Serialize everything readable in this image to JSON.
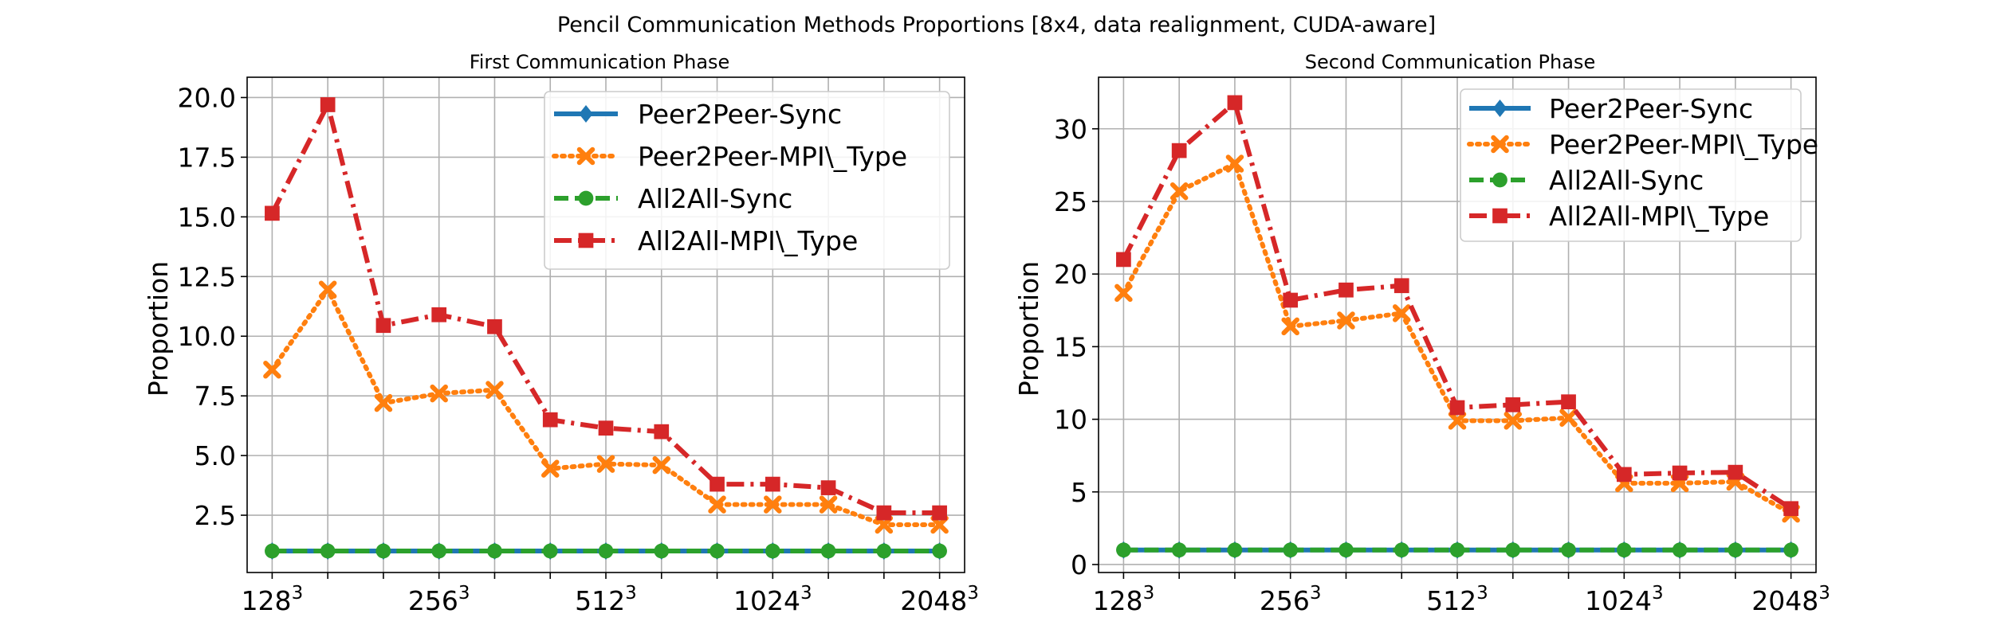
{
  "figure": {
    "suptitle": "Pencil Communication Methods Proportions [8x4, data realignment, CUDA-aware]"
  },
  "chart_data": [
    {
      "type": "line",
      "title": "First Communication Phase",
      "ylabel": "Proportion",
      "xlabel": "",
      "x_tick_labels": [
        {
          "base": "128",
          "exp": "3",
          "index": 0
        },
        {
          "base": "256",
          "exp": "3",
          "index": 3
        },
        {
          "base": "512",
          "exp": "3",
          "index": 6
        },
        {
          "base": "1024",
          "exp": "3",
          "index": 9
        },
        {
          "base": "2048",
          "exp": "3",
          "index": 12
        }
      ],
      "x": [
        0,
        1,
        2,
        3,
        4,
        5,
        6,
        7,
        8,
        9,
        10,
        11,
        12
      ],
      "ylim": [
        0.1,
        20.85
      ],
      "yticks": [
        2.5,
        5.0,
        7.5,
        10.0,
        12.5,
        15.0,
        17.5,
        20.0
      ],
      "grid": true,
      "legend_position": "top-right",
      "series": [
        {
          "name": "Peer2Peer-Sync",
          "color": "#1f77b4",
          "style": "solid",
          "marker": "diamond",
          "values": [
            1.0,
            1.0,
            1.0,
            1.0,
            1.0,
            1.0,
            1.0,
            1.0,
            1.0,
            1.0,
            1.0,
            1.0,
            1.0
          ]
        },
        {
          "name": "Peer2Peer-MPI\\_Type",
          "color": "#ff7f0e",
          "style": "dotted",
          "marker": "x",
          "values": [
            8.6,
            11.95,
            7.2,
            7.6,
            7.75,
            4.45,
            4.65,
            4.6,
            2.95,
            2.95,
            2.95,
            2.1,
            2.1
          ]
        },
        {
          "name": "All2All-Sync",
          "color": "#2ca02c",
          "style": "dashed",
          "marker": "circle",
          "values": [
            1.0,
            1.0,
            1.0,
            1.0,
            1.0,
            1.0,
            1.0,
            1.0,
            1.0,
            1.0,
            1.0,
            1.0,
            1.0
          ]
        },
        {
          "name": "All2All-MPI\\_Type",
          "color": "#d62728",
          "style": "dashdot",
          "marker": "square",
          "values": [
            15.15,
            19.7,
            10.45,
            10.9,
            10.4,
            6.5,
            6.15,
            6.0,
            3.8,
            3.8,
            3.65,
            2.6,
            2.6
          ]
        }
      ]
    },
    {
      "type": "line",
      "title": "Second Communication Phase",
      "ylabel": "Proportion",
      "xlabel": "",
      "x_tick_labels": [
        {
          "base": "128",
          "exp": "3",
          "index": 0
        },
        {
          "base": "256",
          "exp": "3",
          "index": 3
        },
        {
          "base": "512",
          "exp": "3",
          "index": 6
        },
        {
          "base": "1024",
          "exp": "3",
          "index": 9
        },
        {
          "base": "2048",
          "exp": "3",
          "index": 12
        }
      ],
      "x": [
        0,
        1,
        2,
        3,
        4,
        5,
        6,
        7,
        8,
        9,
        10,
        11,
        12
      ],
      "ylim": [
        -0.55,
        33.55
      ],
      "yticks": [
        0,
        5,
        10,
        15,
        20,
        25,
        30
      ],
      "grid": true,
      "legend_position": "top-right",
      "series": [
        {
          "name": "Peer2Peer-Sync",
          "color": "#1f77b4",
          "style": "solid",
          "marker": "diamond",
          "values": [
            1.0,
            1.0,
            1.0,
            1.0,
            1.0,
            1.0,
            1.0,
            1.0,
            1.0,
            1.0,
            1.0,
            1.0,
            1.0
          ]
        },
        {
          "name": "Peer2Peer-MPI\\_Type",
          "color": "#ff7f0e",
          "style": "dotted",
          "marker": "x",
          "values": [
            18.7,
            25.7,
            27.6,
            16.4,
            16.8,
            17.3,
            9.9,
            9.9,
            10.1,
            5.6,
            5.6,
            5.7,
            3.5
          ]
        },
        {
          "name": "All2All-Sync",
          "color": "#2ca02c",
          "style": "dashed",
          "marker": "circle",
          "values": [
            1.0,
            1.0,
            1.0,
            1.0,
            1.0,
            1.0,
            1.0,
            1.0,
            1.0,
            1.0,
            1.0,
            1.0,
            1.0
          ]
        },
        {
          "name": "All2All-MPI\\_Type",
          "color": "#d62728",
          "style": "dashdot",
          "marker": "square",
          "values": [
            21.0,
            28.5,
            31.8,
            18.2,
            18.9,
            19.2,
            10.8,
            11.0,
            11.2,
            6.2,
            6.3,
            6.35,
            3.85
          ]
        }
      ]
    }
  ]
}
